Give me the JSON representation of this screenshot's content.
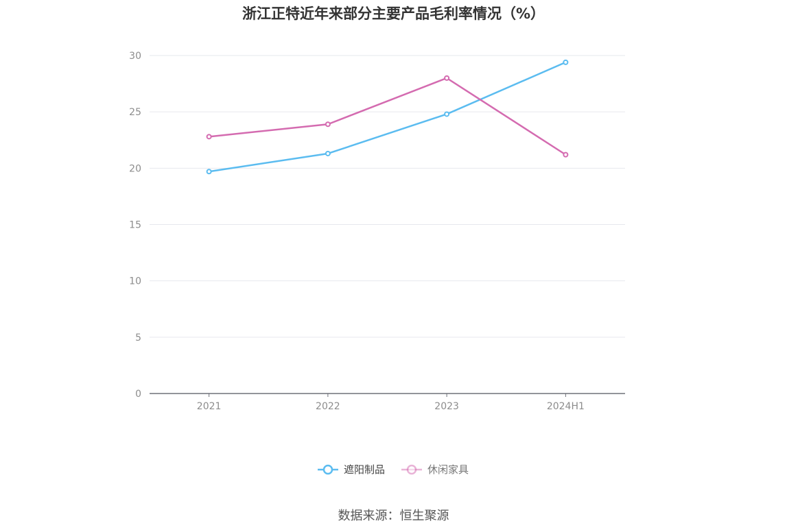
{
  "title": "浙江正特近年来部分主要产品毛利率情况（%）",
  "source": "数据来源：恒生聚源",
  "colors": {
    "series_1": "#5bbcf0",
    "series_2": "#d46bb0"
  },
  "chart_data": {
    "type": "line",
    "categories": [
      "2021",
      "2022",
      "2023",
      "2024H1"
    ],
    "series": [
      {
        "name": "遮阳制品",
        "values": [
          19.7,
          21.3,
          24.8,
          29.4
        ]
      },
      {
        "name": "休闲家具",
        "values": [
          22.8,
          23.9,
          28.0,
          21.2
        ]
      }
    ],
    "ylim": [
      0,
      30
    ],
    "yticks": [
      0,
      5,
      10,
      15,
      20,
      25,
      30
    ],
    "grid": true,
    "legend": "bottom-center",
    "xlabel": "",
    "ylabel": ""
  }
}
